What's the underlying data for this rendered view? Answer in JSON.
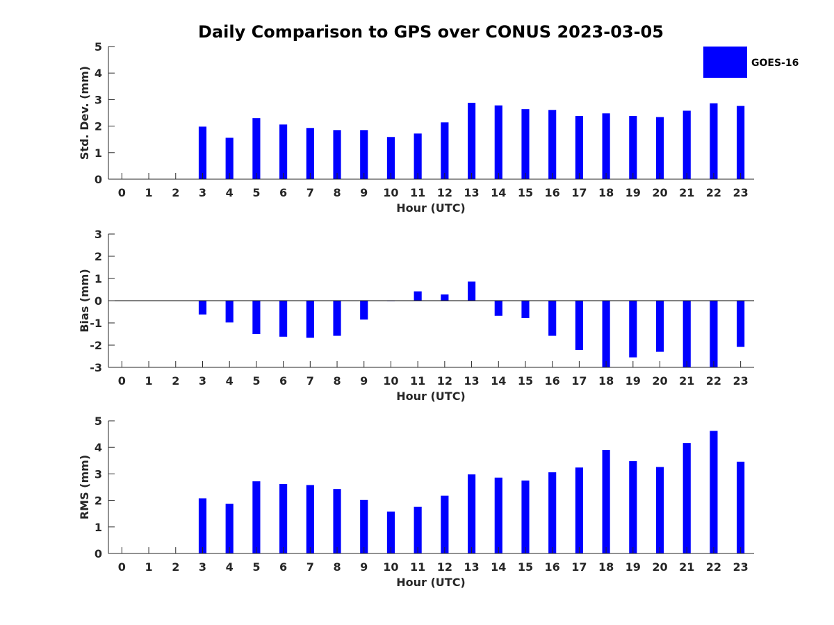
{
  "title": "Daily Comparison to GPS over CONUS 2023-03-05",
  "legend": {
    "label": "GOES-16",
    "color": "#0000ff",
    "placement": "top-right"
  },
  "chart_data": [
    {
      "type": "bar",
      "title": "Daily Comparison to GPS over CONUS 2023-03-05",
      "xlabel": "Hour (UTC)",
      "ylabel": "Std. Dev. (mm)",
      "ylim": [
        0,
        5
      ],
      "yticks": [
        0,
        1,
        2,
        3,
        4,
        5
      ],
      "categories": [
        0,
        1,
        2,
        3,
        4,
        5,
        6,
        7,
        8,
        9,
        10,
        11,
        12,
        13,
        14,
        15,
        16,
        17,
        18,
        19,
        20,
        21,
        22,
        23
      ],
      "series": [
        {
          "name": "GOES-16",
          "color": "#0000ff",
          "values": [
            null,
            null,
            null,
            1.98,
            1.56,
            2.3,
            2.06,
            1.93,
            1.85,
            1.85,
            1.59,
            1.72,
            2.14,
            2.88,
            2.78,
            2.64,
            2.61,
            2.38,
            2.48,
            2.38,
            2.34,
            2.58,
            2.86,
            2.76
          ]
        }
      ],
      "grid": false
    },
    {
      "type": "bar",
      "title": "",
      "xlabel": "Hour (UTC)",
      "ylabel": "Bias (mm)",
      "ylim": [
        -3,
        3
      ],
      "yticks": [
        -3,
        -2,
        -1,
        0,
        1,
        2,
        3
      ],
      "categories": [
        0,
        1,
        2,
        3,
        4,
        5,
        6,
        7,
        8,
        9,
        10,
        11,
        12,
        13,
        14,
        15,
        16,
        17,
        18,
        19,
        20,
        21,
        22,
        23
      ],
      "series": [
        {
          "name": "GOES-16",
          "color": "#0000ff",
          "values": [
            null,
            null,
            null,
            -0.62,
            -0.98,
            -1.5,
            -1.62,
            -1.67,
            -1.58,
            -0.85,
            -0.02,
            0.42,
            0.28,
            0.86,
            -0.68,
            -0.78,
            -1.58,
            -2.22,
            -3.0,
            -2.55,
            -2.3,
            -3.0,
            -3.0,
            -2.08
          ]
        }
      ],
      "grid": false
    },
    {
      "type": "bar",
      "title": "",
      "xlabel": "Hour (UTC)",
      "ylabel": "RMS (mm)",
      "ylim": [
        0,
        5
      ],
      "yticks": [
        0,
        1,
        2,
        3,
        4,
        5
      ],
      "categories": [
        0,
        1,
        2,
        3,
        4,
        5,
        6,
        7,
        8,
        9,
        10,
        11,
        12,
        13,
        14,
        15,
        16,
        17,
        18,
        19,
        20,
        21,
        22,
        23
      ],
      "series": [
        {
          "name": "GOES-16",
          "color": "#0000ff",
          "values": [
            null,
            null,
            null,
            2.08,
            1.87,
            2.72,
            2.62,
            2.58,
            2.43,
            2.02,
            1.58,
            1.76,
            2.18,
            2.98,
            2.86,
            2.75,
            3.06,
            3.24,
            3.9,
            3.48,
            3.26,
            4.16,
            4.62,
            3.46
          ]
        }
      ],
      "grid": false
    }
  ]
}
